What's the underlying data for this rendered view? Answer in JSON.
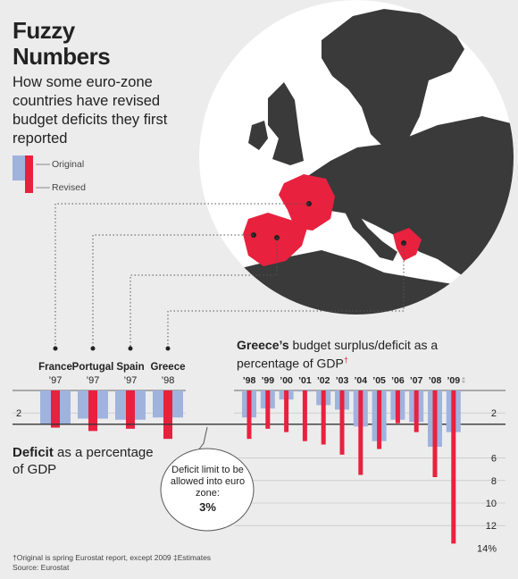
{
  "title_line1": "Fuzzy",
  "title_line2": "Numbers",
  "subtitle": "How some euro-zone countries have revised budget deficits they first reported",
  "legend": {
    "original": "Original",
    "revised": "Revised"
  },
  "colors": {
    "original": "#9fb3dd",
    "revised": "#e8213f",
    "map_land": "#3a3a3a",
    "map_sea": "#ffffff",
    "highlight": "#e8213f",
    "background": "#ececec"
  },
  "deficit_label": {
    "bold": "Deficit",
    "rest": " as a percentage of GDP"
  },
  "limit_note": {
    "text": "Deficit limit to be allowed into euro zone:",
    "value": "3%"
  },
  "greece_title": {
    "bold": "Greece’s",
    "rest": " budget surplus/deficit as a percentage of GDP",
    "mark": "†"
  },
  "footnote1": "†Original is spring Eurostat report, except 2009  ‡Estimates",
  "footnote2": "Source: Eurostat",
  "map_labels": [
    "France",
    "Portugal",
    "Spain",
    "Greece"
  ],
  "chart_data": [
    {
      "type": "bar",
      "categories": [
        "France",
        "Portugal",
        "Spain",
        "Greece"
      ],
      "category_years": [
        "’97",
        "’97",
        "’97",
        "’98"
      ],
      "series": [
        {
          "name": "Original",
          "values": [
            3.0,
            2.5,
            2.6,
            2.4
          ]
        },
        {
          "name": "Revised",
          "values": [
            3.3,
            3.6,
            3.4,
            4.3
          ]
        }
      ],
      "y_ticks": [
        2
      ],
      "ylabel": "Deficit as a percentage of GDP",
      "reference_line": 3
    },
    {
      "type": "bar",
      "categories": [
        "’98",
        "’99",
        "’00",
        "’01",
        "’02",
        "’03",
        "’04",
        "’05",
        "’06",
        "’07",
        "’08",
        "’09"
      ],
      "category_marks": [
        "",
        "",
        "",
        "",
        "",
        "",
        "",
        "",
        "",
        "",
        "",
        "‡"
      ],
      "series": [
        {
          "name": "Original",
          "values": [
            2.4,
            1.6,
            0.8,
            0.1,
            1.3,
            1.7,
            3.2,
            4.5,
            2.6,
            2.8,
            5.0,
            3.7
          ]
        },
        {
          "name": "Revised",
          "values": [
            4.3,
            3.4,
            3.7,
            4.5,
            4.8,
            5.7,
            7.5,
            5.2,
            2.9,
            3.7,
            7.7,
            13.6
          ]
        }
      ],
      "y_ticks": [
        2,
        6,
        8,
        10,
        12,
        14
      ],
      "y_unit": "%",
      "reference_line": 3
    }
  ]
}
